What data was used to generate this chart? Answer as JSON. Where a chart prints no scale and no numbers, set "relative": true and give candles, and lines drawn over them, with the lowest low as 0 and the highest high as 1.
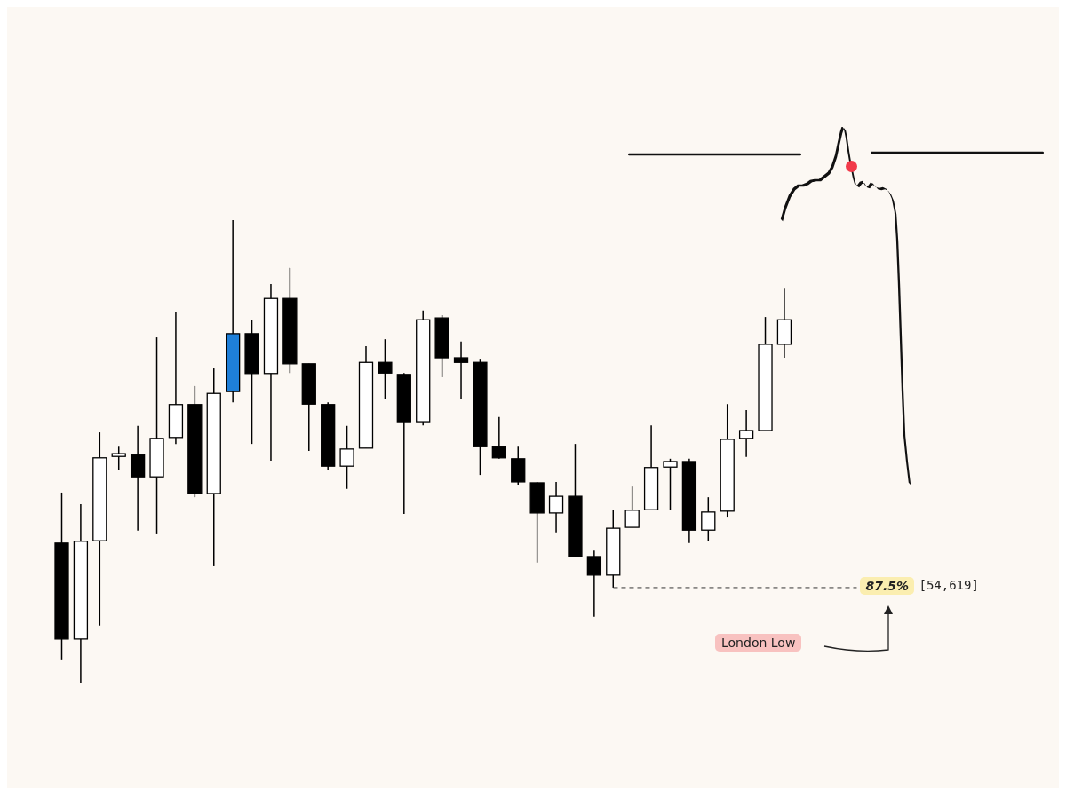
{
  "chart_data": {
    "type": "candlestick",
    "relative": true,
    "categories": [
      null,
      null,
      null,
      null,
      null,
      null,
      null,
      null,
      null,
      null,
      null,
      null,
      null,
      null,
      null,
      null,
      null,
      null,
      null,
      null,
      null,
      null,
      null,
      null,
      null,
      null,
      null,
      null,
      null,
      null,
      null,
      null,
      null,
      null,
      null,
      null,
      null,
      null,
      null
    ],
    "ohlc": [
      [
        0.303,
        0.412,
        0.052,
        0.096
      ],
      [
        0.096,
        0.387,
        0,
        0.307
      ],
      [
        0.308,
        0.542,
        0.125,
        0.487
      ],
      [
        0.49,
        0.511,
        0.46,
        0.496
      ],
      [
        0.494,
        0.556,
        0.33,
        0.446
      ],
      [
        0.446,
        0.747,
        0.322,
        0.529
      ],
      [
        0.531,
        0.801,
        0.517,
        0.602
      ],
      [
        0.602,
        0.642,
        0.402,
        0.41
      ],
      [
        0.41,
        0.68,
        0.253,
        0.626
      ],
      [
        0.63,
        1,
        0.607,
        0.755
      ],
      [
        0.755,
        0.785,
        0.517,
        0.669
      ],
      [
        0.669,
        0.862,
        0.481,
        0.831
      ],
      [
        0.831,
        0.897,
        0.67,
        0.69
      ],
      [
        0.69,
        0.69,
        0.502,
        0.603
      ],
      [
        0.602,
        0.607,
        0.46,
        0.469
      ],
      [
        0.469,
        0.556,
        0.42,
        0.506
      ],
      [
        0.508,
        0.728,
        0.508,
        0.693
      ],
      [
        0.693,
        0.743,
        0.613,
        0.67
      ],
      [
        0.667,
        0.67,
        0.366,
        0.565
      ],
      [
        0.565,
        0.805,
        0.557,
        0.785
      ],
      [
        0.789,
        0.795,
        0.661,
        0.703
      ],
      [
        0.703,
        0.738,
        0.613,
        0.693
      ],
      [
        0.693,
        0.699,
        0.45,
        0.511
      ],
      [
        0.511,
        0.575,
        0.485,
        0.487
      ],
      [
        0.485,
        0.511,
        0.429,
        0.435
      ],
      [
        0.433,
        0.435,
        0.261,
        0.368
      ],
      [
        0.368,
        0.435,
        0.326,
        0.404
      ],
      [
        0.404,
        0.517,
        0.274,
        0.274
      ],
      [
        0.274,
        0.287,
        0.144,
        0.234
      ],
      [
        0.234,
        0.375,
        0.207,
        0.335
      ],
      [
        0.337,
        0.425,
        0.337,
        0.374
      ],
      [
        0.375,
        0.557,
        0.375,
        0.466
      ],
      [
        0.467,
        0.485,
        0.375,
        0.479
      ],
      [
        0.479,
        0.485,
        0.303,
        0.331
      ],
      [
        0.331,
        0.402,
        0.307,
        0.37
      ],
      [
        0.372,
        0.603,
        0.36,
        0.527
      ],
      [
        0.529,
        0.59,
        0.489,
        0.546
      ],
      [
        0.546,
        0.791,
        0.546,
        0.732
      ],
      [
        0.732,
        0.852,
        0.703,
        0.785
      ]
    ],
    "colors": [
      "#000000",
      "#ffffff",
      "#ffffff",
      "#ffffff",
      "#000000",
      "#ffffff",
      "#ffffff",
      "#000000",
      "#ffffff",
      "#1e7fd8",
      "#000000",
      "#ffffff",
      "#000000",
      "#000000",
      "#000000",
      "#ffffff",
      "#ffffff",
      "#000000",
      "#000000",
      "#ffffff",
      "#000000",
      "#000000",
      "#000000",
      "#000000",
      "#000000",
      "#000000",
      "#ffffff",
      "#000000",
      "#000000",
      "#ffffff",
      "#ffffff",
      "#ffffff",
      "#ffffff",
      "#000000",
      "#ffffff",
      "#ffffff",
      "#ffffff",
      "#ffffff",
      "#ffffff"
    ],
    "ref_lines": [
      {
        "axis": "y",
        "value": 0.207,
        "line_style": "dashed",
        "color": "#333333"
      }
    ],
    "annotations": [
      "87.5%",
      "[54,619]",
      "London Low"
    ]
  }
}
